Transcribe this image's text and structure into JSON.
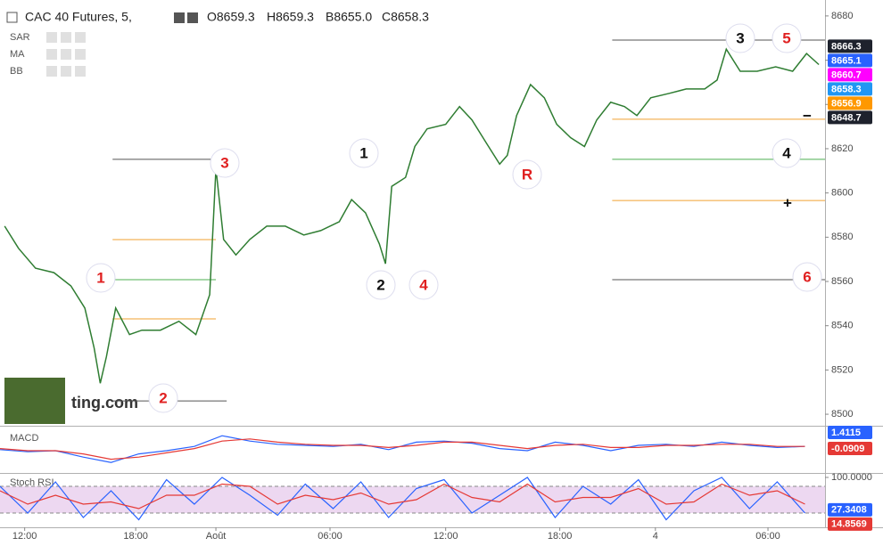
{
  "header": {
    "title": "CAC 40 Futures, 5,",
    "ohlc": [
      "O8659.3",
      "H8659.3",
      "B8655.0",
      "C8658.3"
    ],
    "indicators": [
      "SAR",
      "MA",
      "BB"
    ],
    "watermark": "ting.com"
  },
  "chart_data": [
    {
      "type": "line",
      "color": "#2f7d32",
      "x": [
        3,
        12,
        23,
        35,
        46,
        55,
        61,
        65,
        69,
        75,
        84,
        92,
        104,
        116,
        127,
        136,
        140,
        145,
        153,
        162,
        173,
        185,
        197,
        208,
        220,
        228,
        237,
        246,
        250,
        254,
        263,
        269,
        277,
        289,
        298,
        306,
        315,
        324,
        329,
        335,
        344,
        353,
        361,
        370,
        379,
        387,
        396,
        405,
        413,
        422,
        434,
        445,
        457,
        465,
        471,
        480,
        491,
        503,
        514,
        523,
        531
      ],
      "values": [
        8585,
        8575,
        8566,
        8564,
        8558,
        8548,
        8530,
        8514,
        8526,
        8548,
        8536,
        8538,
        8538,
        8542,
        8536,
        8554,
        8611,
        8579,
        8572,
        8579,
        8585,
        8585,
        8581,
        8583,
        8587,
        8597,
        8591,
        8577,
        8568,
        8603,
        8607,
        8621,
        8629,
        8631,
        8639,
        8633,
        8623,
        8613,
        8617,
        8635,
        8649,
        8643,
        8631,
        8625,
        8621,
        8633,
        8641,
        8639,
        8635,
        8643,
        8645,
        8647,
        8647,
        8651,
        8665,
        8655,
        8655,
        8657,
        8655,
        8663,
        8658
      ],
      "xlim": [
        0,
        535
      ],
      "xticks": [
        {
          "value": 16,
          "label": "12:00"
        },
        {
          "value": 88,
          "label": "18:00"
        },
        {
          "value": 140,
          "label": "Août"
        },
        {
          "value": 214,
          "label": "06:00"
        },
        {
          "value": 289,
          "label": "12:00"
        },
        {
          "value": 363,
          "label": "18:00"
        },
        {
          "value": 425,
          "label": "4"
        },
        {
          "value": 498,
          "label": "06:00"
        }
      ],
      "ylim": [
        8496,
        8687.2
      ],
      "yticks": [
        8500,
        8520,
        8540,
        8560,
        8580,
        8600,
        8620,
        8640,
        8660,
        8680
      ],
      "levels": [
        {
          "value": 8615.2,
          "x": [
            73,
            140
          ],
          "color": "#555555"
        },
        {
          "value": 8578.9,
          "x": [
            73,
            140
          ],
          "color": "#f0a030"
        },
        {
          "value": 8560.8,
          "x": [
            73,
            140
          ],
          "color": "#4caf50"
        },
        {
          "value": 8543.1,
          "x": [
            73,
            140
          ],
          "color": "#f0a030"
        },
        {
          "value": 8506.0,
          "x": [
            73,
            147
          ],
          "color": "#555555"
        },
        {
          "value": 8669.1,
          "x": [
            397,
            535
          ],
          "color": "#555555"
        },
        {
          "value": 8633.3,
          "x": [
            397,
            535
          ],
          "color": "#f0a030"
        },
        {
          "value": 8615.2,
          "x": [
            397,
            535
          ],
          "color": "#4caf50"
        },
        {
          "value": 8596.6,
          "x": [
            397,
            535
          ],
          "color": "#f0a030"
        },
        {
          "value": 8560.8,
          "x": [
            397,
            535
          ],
          "color": "#555555"
        }
      ],
      "annotations": [
        {
          "text": "1",
          "color": "#e02020"
        },
        {
          "text": "2",
          "color": "#e02020"
        },
        {
          "text": "3",
          "color": "#e02020"
        },
        {
          "text": "1",
          "color": "#111111"
        },
        {
          "text": "2",
          "color": "#111111"
        },
        {
          "text": "4",
          "color": "#e02020"
        },
        {
          "text": "R",
          "color": "#e02020"
        },
        {
          "text": "3",
          "color": "#111111"
        },
        {
          "text": "5",
          "color": "#e02020"
        },
        {
          "text": "4",
          "color": "#111111"
        },
        {
          "text": "6",
          "color": "#e02020"
        },
        {
          "text": "−",
          "color": "#111111"
        },
        {
          "text": "+",
          "color": "#111111"
        }
      ],
      "value_tags": [
        {
          "value": 8666.3,
          "color": "#1e222d"
        },
        {
          "value": 8665.1,
          "color": "#2962ff"
        },
        {
          "value": 8660.7,
          "color": "#ff00ff"
        },
        {
          "value": 8658.3,
          "color": "#2196f3"
        },
        {
          "value": 8656.9,
          "color": "#ff9800"
        },
        {
          "value": 8648.7,
          "color": "#1e222d"
        }
      ]
    },
    {
      "type": "line",
      "title": "MACD",
      "x": [
        0,
        18,
        36,
        54,
        72,
        90,
        108,
        126,
        144,
        162,
        180,
        198,
        216,
        234,
        252,
        270,
        288,
        306,
        324,
        342,
        360,
        378,
        396,
        414,
        432,
        450,
        468,
        486,
        504,
        522
      ],
      "series": [
        {
          "color": "#2962ff",
          "values": [
            -0.2,
            -0.4,
            -0.3,
            -0.9,
            -1.4,
            -0.6,
            -0.3,
            0.1,
            1.1,
            0.6,
            0.3,
            0.2,
            0.1,
            0.3,
            -0.2,
            0.5,
            0.6,
            0.4,
            -0.1,
            -0.3,
            0.5,
            0.2,
            -0.3,
            0.2,
            0.3,
            0.1,
            0.5,
            0.2,
            0.0,
            0.1
          ]
        },
        {
          "color": "#e53935",
          "values": [
            -0.1,
            -0.3,
            -0.3,
            -0.6,
            -1.1,
            -0.9,
            -0.5,
            -0.1,
            0.6,
            0.8,
            0.5,
            0.3,
            0.2,
            0.2,
            0.0,
            0.2,
            0.5,
            0.5,
            0.2,
            -0.1,
            0.2,
            0.3,
            0.0,
            0.0,
            0.2,
            0.2,
            0.3,
            0.3,
            0.1,
            0.1
          ]
        }
      ],
      "ylim": [
        -2.3,
        1.7
      ],
      "value_tags": [
        {
          "value": 1.4115,
          "color": "#2962ff"
        },
        {
          "value": -0.0909,
          "color": "#e53935"
        }
      ]
    },
    {
      "type": "line",
      "title": "Stoch RSI",
      "x": [
        0,
        18,
        36,
        54,
        72,
        90,
        108,
        126,
        144,
        162,
        180,
        198,
        216,
        234,
        252,
        270,
        288,
        306,
        324,
        342,
        360,
        378,
        396,
        414,
        432,
        450,
        468,
        486,
        504,
        522
      ],
      "series": [
        {
          "color": "#2962ff",
          "values": [
            80,
            20,
            90,
            10,
            70,
            5,
            95,
            40,
            100,
            60,
            15,
            85,
            30,
            90,
            10,
            75,
            95,
            20,
            60,
            100,
            10,
            80,
            40,
            95,
            5,
            70,
            100,
            30,
            90,
            20
          ]
        },
        {
          "color": "#e53935",
          "values": [
            70,
            40,
            60,
            40,
            45,
            30,
            60,
            60,
            85,
            80,
            40,
            60,
            50,
            65,
            40,
            50,
            85,
            55,
            45,
            85,
            45,
            55,
            55,
            75,
            40,
            45,
            85,
            60,
            70,
            40
          ]
        }
      ],
      "ylim": [
        -12,
        108
      ],
      "bands": [
        80,
        20
      ],
      "yticks": [
        {
          "value": 100,
          "label": "100.0000"
        }
      ],
      "value_tags": [
        {
          "value": 27.3408,
          "color": "#2962ff"
        },
        {
          "value": 14.8569,
          "color": "#e53935"
        }
      ]
    }
  ]
}
